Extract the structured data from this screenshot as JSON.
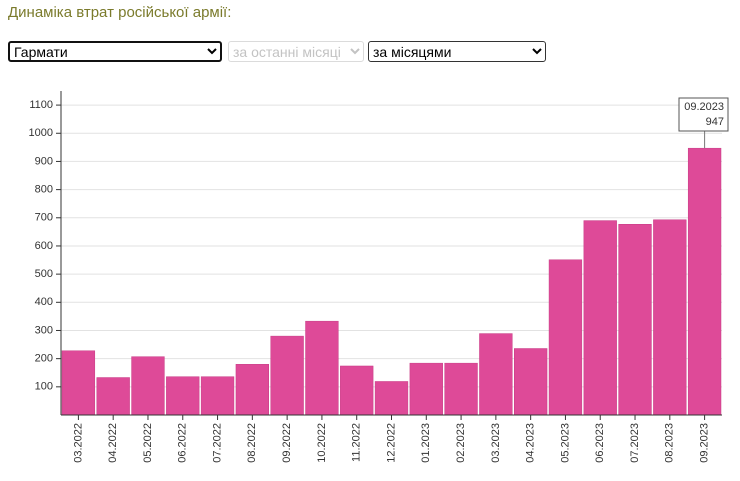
{
  "header": {
    "title": "Динаміка втрат російської армії:"
  },
  "controls": {
    "category": "Гармати",
    "period": "за останні місяці",
    "grouping": "за місяцями"
  },
  "chart_data": {
    "type": "bar",
    "categories": [
      "03.2022",
      "04.2022",
      "05.2022",
      "06.2022",
      "07.2022",
      "08.2022",
      "09.2022",
      "10.2022",
      "11.2022",
      "12.2022",
      "01.2023",
      "02.2023",
      "03.2023",
      "04.2023",
      "05.2023",
      "06.2023",
      "07.2023",
      "08.2023",
      "09.2023"
    ],
    "values": [
      228,
      133,
      207,
      136,
      136,
      180,
      280,
      333,
      174,
      119,
      184,
      184,
      289,
      236,
      551,
      690,
      677,
      693,
      947
    ],
    "color": "#de4a98",
    "ylim": [
      0,
      1150
    ],
    "yticks": [
      100,
      200,
      300,
      400,
      500,
      600,
      700,
      800,
      900,
      1000,
      1100
    ],
    "grid": true,
    "tooltip": {
      "category": "09.2023",
      "value": 947
    }
  }
}
